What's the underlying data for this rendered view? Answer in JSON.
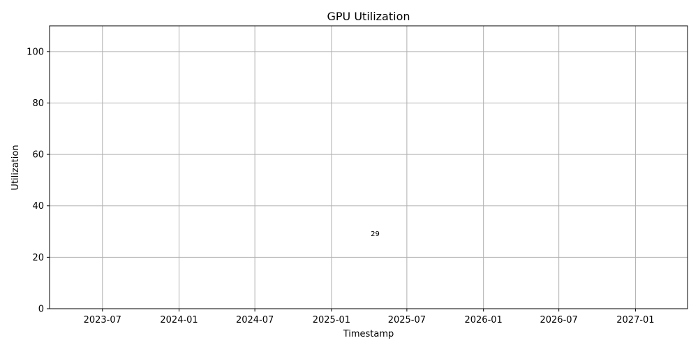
{
  "chart_data": {
    "type": "scatter",
    "title": "GPU Utilization",
    "xlabel": "Timestamp",
    "ylabel": "Utilization",
    "x_type": "date",
    "xlim": [
      "2023-02-24",
      "2027-05-06"
    ],
    "ylim": [
      0,
      110
    ],
    "x_ticks": [
      "2023-07",
      "2024-01",
      "2024-07",
      "2025-01",
      "2025-07",
      "2026-01",
      "2026-07",
      "2027-01"
    ],
    "y_ticks": [
      0,
      20,
      40,
      60,
      80,
      100
    ],
    "grid": true,
    "points": [
      {
        "x": "2025-04-16",
        "y": 29,
        "label": "29"
      }
    ],
    "colors": {
      "grid": "#b0b0b0",
      "axes": "#000000",
      "background": "#ffffff"
    }
  }
}
